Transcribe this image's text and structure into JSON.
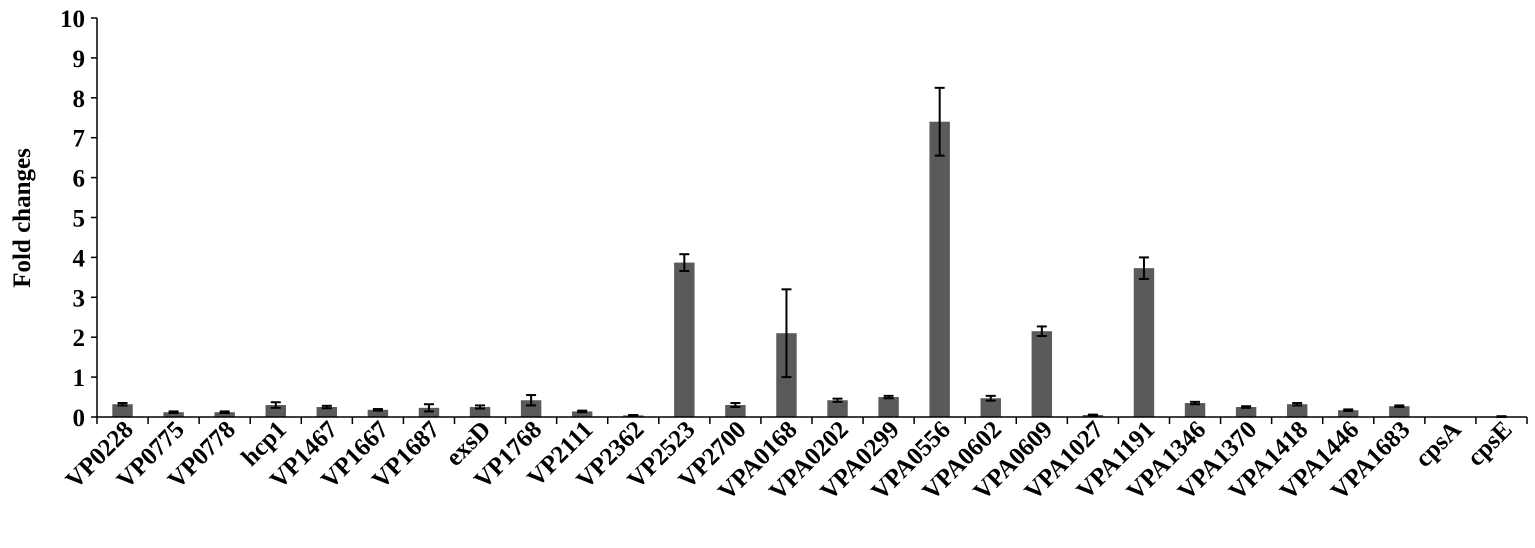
{
  "chart_data": {
    "type": "bar",
    "title": "",
    "xlabel": "",
    "ylabel": "Fold changes",
    "ylim": [
      0,
      10
    ],
    "yticks": [
      0,
      1,
      2,
      3,
      4,
      5,
      6,
      7,
      8,
      9,
      10
    ],
    "grid": false,
    "bar_color": "#5a5a5a",
    "categories": [
      "VP0228",
      "VP0775",
      "VP0778",
      "hcp1",
      "VP1467",
      "VP1667",
      "VP1687",
      "exsD",
      "VP1768",
      "VP2111",
      "VP2362",
      "VP2523",
      "VP2700",
      "VPA0168",
      "VPA0202",
      "VPA0299",
      "VPA0556",
      "VPA0602",
      "VPA0609",
      "VPA1027",
      "VPA1191",
      "VPA1346",
      "VPA1370",
      "VPA1418",
      "VPA1446",
      "VPA1683",
      "cpsA",
      "cpsE"
    ],
    "values": [
      0.32,
      0.12,
      0.12,
      0.3,
      0.25,
      0.18,
      0.23,
      0.25,
      0.42,
      0.14,
      0.04,
      3.87,
      0.3,
      2.1,
      0.42,
      0.5,
      7.4,
      0.47,
      2.15,
      0.05,
      3.73,
      0.35,
      0.25,
      0.32,
      0.17,
      0.27,
      0.0,
      0.01
    ],
    "errors": [
      0.03,
      0.02,
      0.02,
      0.07,
      0.03,
      0.02,
      0.09,
      0.04,
      0.13,
      0.02,
      0.01,
      0.21,
      0.05,
      1.1,
      0.04,
      0.03,
      0.85,
      0.06,
      0.12,
      0.01,
      0.27,
      0.03,
      0.02,
      0.03,
      0.02,
      0.02,
      0.0,
      0.01
    ]
  }
}
